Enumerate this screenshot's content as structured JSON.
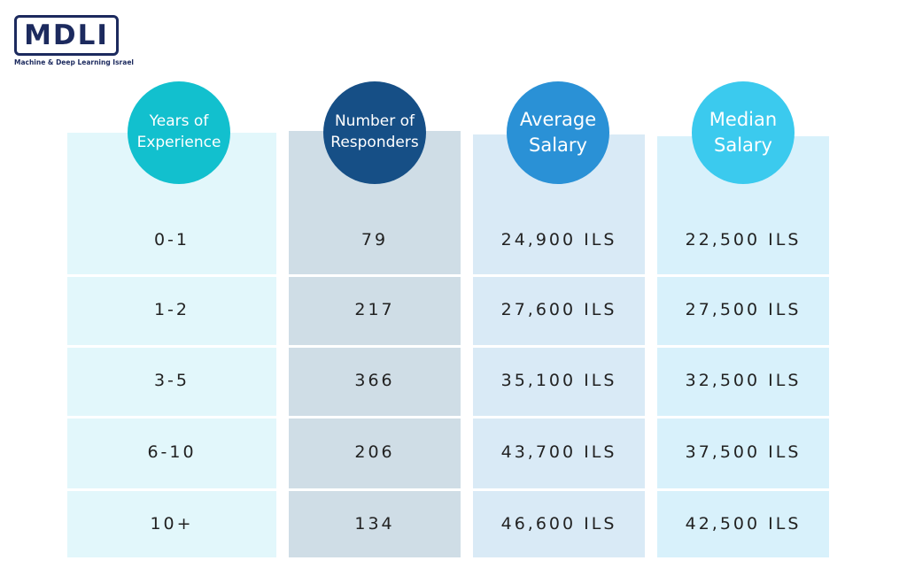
{
  "logo": {
    "text": "MDLI",
    "subtitle": "Machine & Deep Learning Israel"
  },
  "chart_data": {
    "type": "table",
    "headers": [
      "Years of Experience",
      "Number of Responders",
      "Average Salary",
      "Median Salary"
    ],
    "header_lines": [
      [
        "Years of",
        "Experience"
      ],
      [
        "Number of",
        "Responders"
      ],
      [
        "Average",
        "Salary"
      ],
      [
        "Median",
        "Salary"
      ]
    ],
    "rows": [
      [
        "0-1",
        "79",
        "24,900 ILS",
        "22,500 ILS"
      ],
      [
        "1-2",
        "217",
        "27,600 ILS",
        "27,500 ILS"
      ],
      [
        "3-5",
        "366",
        "35,100 ILS",
        "32,500 ILS"
      ],
      [
        "6-10",
        "206",
        "43,700 ILS",
        "37,500 ILS"
      ],
      [
        "10+",
        "134",
        "46,600 ILS",
        "42,500 ILS"
      ]
    ],
    "colors": {
      "header_circles": [
        "#12c0ce",
        "#164f86",
        "#2a91d6",
        "#3bcaee"
      ],
      "column_fills": [
        "#e2f7fb",
        "#cfdde6",
        "#d9eaf6",
        "#d8f1fb"
      ]
    }
  }
}
